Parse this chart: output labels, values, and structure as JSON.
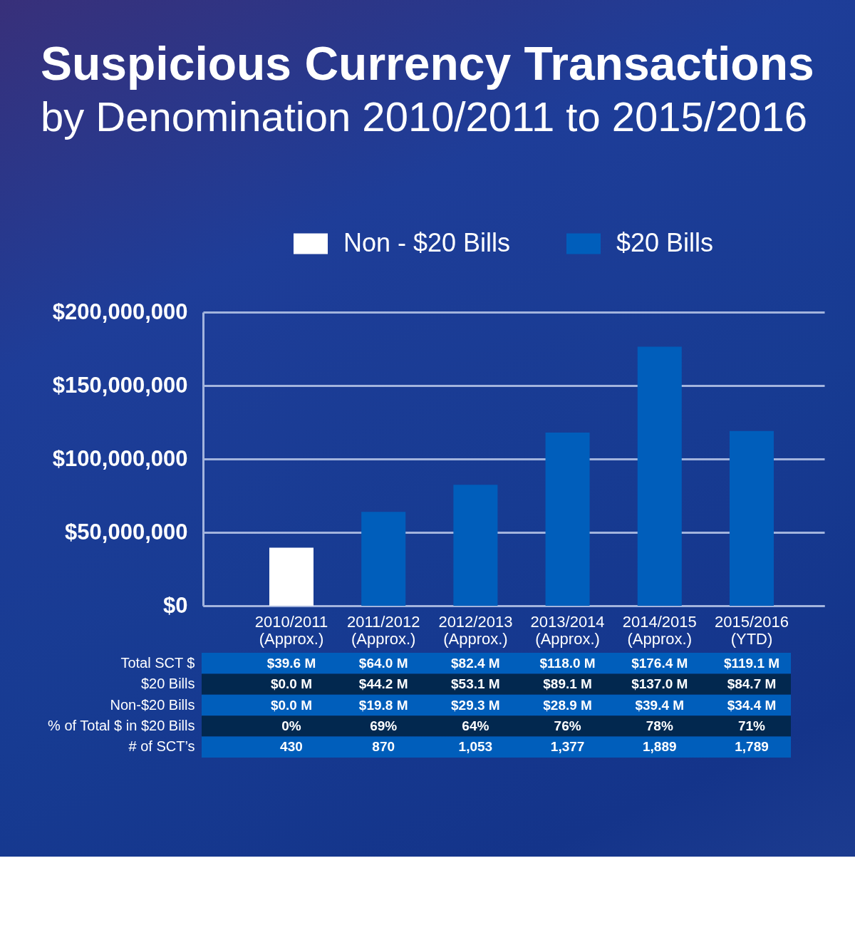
{
  "chart_data": [
    {
      "type": "bar",
      "title": "Suspicious Currency Transactions",
      "subtitle": "by Denomination 2010/2011 to 2015/2016",
      "categories": [
        "2010/2011\n(Approx.)",
        "2011/2012\n(Approx.)",
        "2012/2013\n(Approx.)",
        "2013/2014\n(Approx.)",
        "2014/2015\n(Approx.)",
        "2015/2016\n(YTD)"
      ],
      "series": [
        {
          "name": "Non - $20 Bills",
          "color": "#ffffff",
          "values": [
            39600000,
            null,
            null,
            null,
            null,
            null
          ]
        },
        {
          "name": "$20 Bills",
          "color": "#005ebb",
          "values": [
            null,
            64000000,
            82400000,
            118000000,
            176400000,
            119100000
          ]
        }
      ],
      "ylim": [
        0,
        200000000
      ],
      "yticks": [
        {
          "value": 0,
          "label": "$0"
        },
        {
          "value": 50000000,
          "label": "$50,000,000"
        },
        {
          "value": 100000000,
          "label": "$100,000,000"
        },
        {
          "value": 150000000,
          "label": "$150,000,000"
        },
        {
          "value": 200000000,
          "label": "$200,000,000"
        }
      ],
      "grid": "y",
      "legend": "top"
    },
    {
      "type": "other",
      "y_categories": [
        "Total SCT $",
        "$20 Bills",
        "Non-$20 Bills",
        "% of Total $ in $20 Bills",
        "# of SCT’s"
      ],
      "cell_labels": [
        [
          "$39.6 M",
          "$64.0 M",
          "$82.4 M",
          "$118.0 M",
          "$176.4 M",
          "$119.1 M"
        ],
        [
          "$0.0 M",
          "$44.2 M",
          "$53.1 M",
          "$89.1 M",
          "$137.0 M",
          "$84.7 M"
        ],
        [
          "$0.0 M",
          "$19.8 M",
          "$29.3 M",
          "$28.9 M",
          "$39.4 M",
          "$34.4 M"
        ],
        [
          "0%",
          "69%",
          "64%",
          "76%",
          "78%",
          "71%"
        ],
        [
          "430",
          "870",
          "1,053",
          "1,377",
          "1,889",
          "1,789"
        ]
      ],
      "colors": [
        "#005ebb",
        "#02284f",
        "#005ebb",
        "#02284f",
        "#005ebb"
      ]
    }
  ]
}
